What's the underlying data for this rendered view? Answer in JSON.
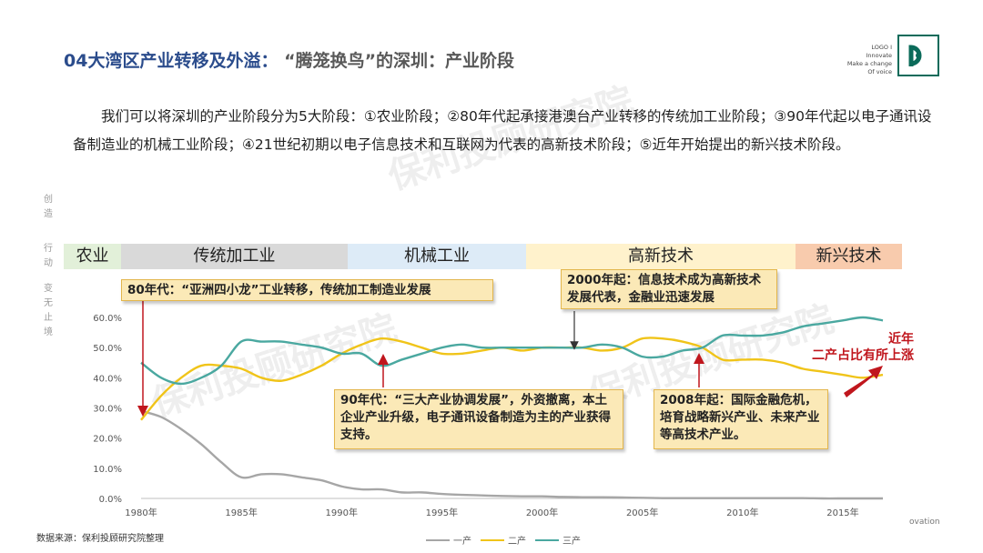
{
  "header": {
    "title_main": "04大湾区产业转移及外溢：",
    "title_sub": "“腾笼换鸟”的深圳：产业阶段",
    "logo_lines": [
      "LOGO I",
      "Innovate",
      "Make a change",
      "Of voice"
    ]
  },
  "intro": "我们可以将深圳的产业阶段分为5大阶段：①农业阶段；②80年代起承接港澳台产业转移的传统加工业阶段；③90年代起以电子通讯设备制造业的机械工业阶段；④21世纪初期以电子信息技术和互联网为代表的高新技术阶段；⑤近年开始提出的新兴技术阶段。",
  "side_text": [
    "创",
    "造",
    "行",
    "动",
    "变",
    "无",
    "止",
    "境"
  ],
  "stages": [
    {
      "label": "农业",
      "color": "#e2f0d9"
    },
    {
      "label": "传统加工业",
      "color": "#d9d9d9"
    },
    {
      "label": "机械工业",
      "color": "#ddebf7"
    },
    {
      "label": "高新技术",
      "color": "#fff2cc"
    },
    {
      "label": "新兴技术",
      "color": "#f8cbad"
    }
  ],
  "annotations": {
    "a80": "80年代：“亚洲四小龙”工业转移，传统加工制造业发展",
    "a2000": "2000年起：信息技术成为高新技术发展代表，金融业迅速发展",
    "a90": "90年代：“三大产业协调发展”，外资撤离，本土企业产业升级，电子通讯设备制造为主的产业获得支持。",
    "a2008": "2008年起：国际金融危机，培育战略新兴产业、未来产业等高技术产业。",
    "recent": "近年\n二产占比有所上涨"
  },
  "footer": {
    "source": "数据来源：保利投顾研究院整理",
    "ovation": "ovation"
  },
  "watermark": "保利投顾研究院",
  "colors": {
    "primary": "#a6a6a6",
    "secondary": "#f0c419",
    "tertiary": "#4aa8a0",
    "arrow": "#c0161d"
  },
  "chart_data": {
    "type": "line",
    "x": [
      1980,
      1981,
      1982,
      1983,
      1984,
      1985,
      1986,
      1987,
      1988,
      1989,
      1990,
      1991,
      1992,
      1993,
      1994,
      1995,
      1996,
      1997,
      1998,
      1999,
      2000,
      2001,
      2002,
      2003,
      2004,
      2005,
      2006,
      2007,
      2008,
      2009,
      2010,
      2011,
      2012,
      2013,
      2014,
      2015,
      2016,
      2017
    ],
    "series": [
      {
        "name": "一产",
        "values": [
          29,
          27,
          23,
          18,
          12,
          7,
          8,
          8,
          7,
          6,
          4,
          3,
          3,
          2,
          2,
          1.5,
          1.2,
          1,
          0.8,
          0.7,
          0.7,
          0.5,
          0.4,
          0.4,
          0.3,
          0.2,
          0.1,
          0.1,
          0.1,
          0.1,
          0.1,
          0.1,
          0.1,
          0.1,
          0,
          0,
          0,
          0
        ]
      },
      {
        "name": "二产",
        "values": [
          26,
          34,
          40,
          44,
          44,
          43,
          40,
          39,
          41,
          44,
          48,
          51,
          53,
          52,
          50,
          48,
          48,
          49,
          50,
          49,
          50,
          50,
          50,
          49,
          50,
          53,
          53,
          52,
          50,
          46,
          46,
          46,
          45,
          43,
          42,
          41,
          40,
          41
        ]
      },
      {
        "name": "三产",
        "values": [
          45,
          40,
          38,
          40,
          44,
          52,
          52,
          52,
          51,
          50,
          48,
          48,
          44,
          46,
          48,
          50,
          51,
          50,
          50,
          50,
          50,
          50,
          50,
          51,
          50,
          47,
          47,
          49,
          50,
          54,
          54,
          54,
          55,
          57,
          58,
          59,
          60,
          59
        ]
      }
    ],
    "y_ticks": [
      "0.0%",
      "10.0%",
      "20.0%",
      "30.0%",
      "40.0%",
      "50.0%",
      "60.0%"
    ],
    "x_ticks": [
      "1980年",
      "1985年",
      "1990年",
      "1995年",
      "2000年",
      "2005年",
      "2010年",
      "2015年"
    ],
    "ylim": [
      0,
      60
    ],
    "legend_position": "bottom"
  }
}
